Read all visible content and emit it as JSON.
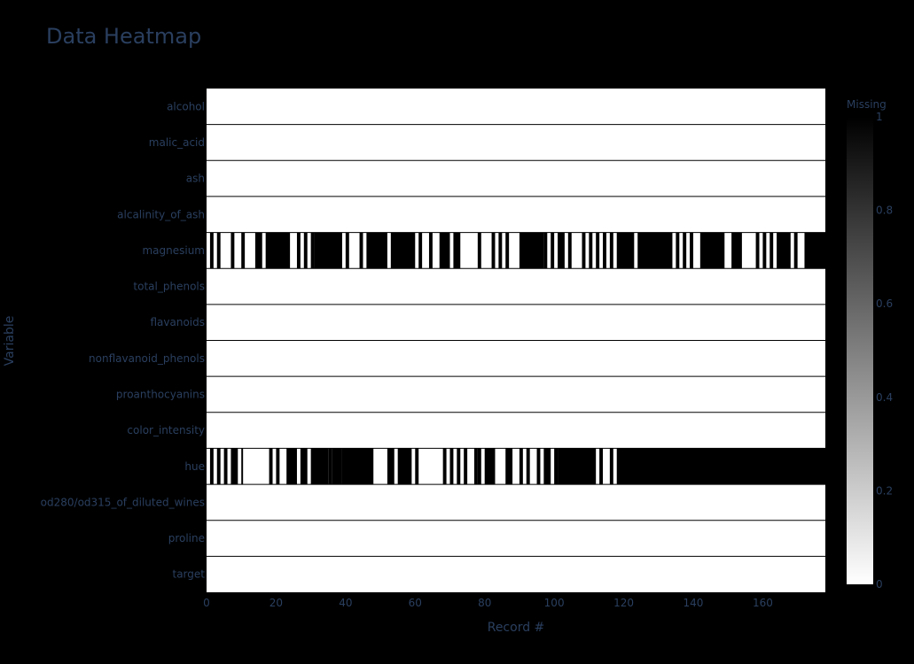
{
  "chart_data": {
    "type": "heatmap",
    "title": "Data Heatmap",
    "xlabel": "Record #",
    "ylabel": "Variable",
    "x_range": [
      0,
      178
    ],
    "x_ticks": [
      0,
      20,
      40,
      60,
      80,
      100,
      120,
      140,
      160
    ],
    "n_records": 178,
    "variables": [
      "alcohol",
      "malic_acid",
      "ash",
      "alcalinity_of_ash",
      "magnesium",
      "total_phenols",
      "flavanoids",
      "nonflavanoid_phenols",
      "proanthocyanins",
      "color_intensity",
      "hue",
      "od280/od315_of_diluted_wines",
      "proline",
      "target"
    ],
    "colorscale": [
      "#ffffff",
      "#000000"
    ],
    "colorbar": {
      "title": "Missing",
      "range": [
        0,
        1
      ],
      "ticks": [
        0,
        0.2,
        0.4,
        0.6,
        0.8,
        1
      ]
    },
    "grid_color": "#000000",
    "missing_runs": {
      "alcohol": [],
      "malic_acid": [],
      "ash": [],
      "alcalinity_of_ash": [],
      "magnesium": [
        [
          1,
          2
        ],
        [
          3,
          4
        ],
        [
          7,
          8
        ],
        [
          10,
          11
        ],
        [
          14,
          16
        ],
        [
          17,
          24
        ],
        [
          26,
          27
        ],
        [
          28,
          29
        ],
        [
          30,
          31
        ],
        [
          31,
          39
        ],
        [
          40,
          41
        ],
        [
          44,
          45
        ],
        [
          46,
          52
        ],
        [
          53,
          60
        ],
        [
          61,
          62
        ],
        [
          64,
          65
        ],
        [
          67,
          70
        ],
        [
          71,
          73
        ],
        [
          78,
          79
        ],
        [
          82,
          83
        ],
        [
          84,
          85
        ],
        [
          86,
          87
        ],
        [
          90,
          97
        ],
        [
          97,
          98
        ],
        [
          99,
          100
        ],
        [
          101,
          103
        ],
        [
          104,
          105
        ],
        [
          108,
          109
        ],
        [
          110,
          111
        ],
        [
          112,
          113
        ],
        [
          114,
          115
        ],
        [
          116,
          117
        ],
        [
          118,
          123
        ],
        [
          124,
          134
        ],
        [
          135,
          136
        ],
        [
          137,
          138
        ],
        [
          139,
          140
        ],
        [
          142,
          149
        ],
        [
          151,
          154
        ],
        [
          158,
          159
        ],
        [
          160,
          161
        ],
        [
          162,
          163
        ],
        [
          164,
          168
        ],
        [
          169,
          170
        ],
        [
          172,
          178
        ]
      ],
      "total_phenols": [],
      "flavanoids": [],
      "nonflavanoid_phenols": [],
      "proanthocyanins": [],
      "color_intensity": [],
      "hue": [
        [
          1,
          2
        ],
        [
          3,
          4
        ],
        [
          5,
          6
        ],
        [
          7,
          9
        ],
        [
          10,
          10.5
        ],
        [
          18,
          19
        ],
        [
          20,
          21
        ],
        [
          23,
          26
        ],
        [
          27,
          29
        ],
        [
          30,
          35
        ],
        [
          35,
          36
        ],
        [
          36,
          39
        ],
        [
          39,
          48
        ],
        [
          52,
          54
        ],
        [
          55,
          59
        ],
        [
          60,
          61
        ],
        [
          68,
          69
        ],
        [
          70,
          71
        ],
        [
          72,
          73
        ],
        [
          74,
          75
        ],
        [
          77,
          78
        ],
        [
          78,
          79
        ],
        [
          80,
          83
        ],
        [
          86,
          88
        ],
        [
          90,
          91
        ],
        [
          92,
          93
        ],
        [
          95,
          96
        ],
        [
          97,
          99
        ],
        [
          100,
          101
        ],
        [
          101,
          112
        ],
        [
          113,
          114
        ],
        [
          116,
          117
        ],
        [
          118,
          178
        ]
      ],
      "od280/od315_of_diluted_wines": [],
      "proline": [],
      "target": []
    }
  }
}
